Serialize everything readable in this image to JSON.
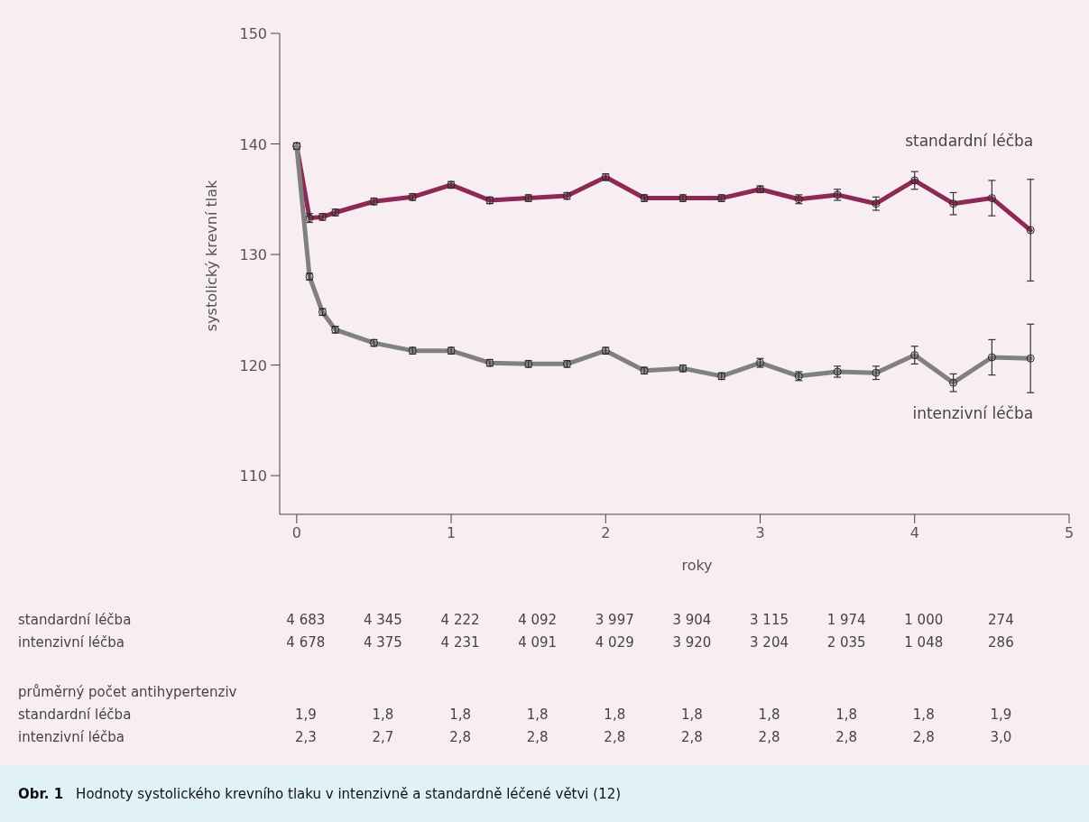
{
  "chart_data": {
    "type": "line",
    "title": "Obr. 1",
    "subtitle": "Hodnoty systolického krevního tlaku v intenzivně a standardně léčené větvi (12)",
    "xlabel": "roky",
    "ylabel": "systolický krevní tlak",
    "x": [
      0,
      0.083,
      0.167,
      0.25,
      0.5,
      0.75,
      1,
      1.25,
      1.5,
      1.75,
      2,
      2.25,
      2.5,
      2.75,
      3,
      3.25,
      3.5,
      3.75,
      4,
      4.25,
      4.5,
      4.75
    ],
    "series": [
      {
        "name": "standardní léčba",
        "color": "#8c2a55",
        "values": [
          139.8,
          133.3,
          133.4,
          133.8,
          134.8,
          135.2,
          136.3,
          134.9,
          135.1,
          135.3,
          137.0,
          135.1,
          135.1,
          135.1,
          135.9,
          135.0,
          135.4,
          134.6,
          136.7,
          134.6,
          135.1,
          132.2
        ],
        "errors": [
          0.3,
          0.4,
          0.3,
          0.3,
          0.3,
          0.3,
          0.3,
          0.3,
          0.3,
          0.3,
          0.3,
          0.3,
          0.3,
          0.3,
          0.3,
          0.4,
          0.5,
          0.6,
          0.8,
          1.0,
          1.6,
          4.6
        ]
      },
      {
        "name": "intenzivní léčba",
        "color": "#808080",
        "values": [
          139.8,
          128.0,
          124.8,
          123.2,
          122.0,
          121.3,
          121.3,
          120.2,
          120.1,
          120.1,
          121.3,
          119.5,
          119.7,
          119.0,
          120.2,
          119.0,
          119.4,
          119.3,
          120.9,
          118.4,
          120.7,
          120.6
        ],
        "errors": [
          null,
          0.3,
          0.3,
          0.3,
          0.3,
          0.3,
          0.3,
          0.3,
          0.3,
          0.3,
          0.3,
          0.3,
          0.3,
          0.3,
          0.4,
          0.4,
          0.5,
          0.6,
          0.8,
          0.8,
          1.6,
          3.1
        ]
      }
    ],
    "xlim": [
      -0.11,
      5
    ],
    "ylim": [
      106.5,
      150
    ],
    "xticks": [
      0,
      1,
      2,
      3,
      4,
      5
    ],
    "yticks": [
      110,
      120,
      130,
      140,
      150
    ],
    "marker": "circle",
    "line_style": "solid",
    "grid": false,
    "annotations": [
      "standardní léčba\t4 683\t4 345\t4 222\t4 092\t3 997\t3 904\t3 115\t1 974\t1 000\t274",
      "intenzivní léčba\t4 678\t4 375\t4 231\t4 091\t4 029\t3 920\t3 204\t2 035\t1 048\t286",
      "průměrný počet antihypertenziv",
      "standardní léčba\t1,9\t1,8\t1,8\t1,8\t1,8\t1,8\t1,8\t1,8\t1,8\t1,9",
      "intenzivní léčba\t2,3\t2,7\t2,8\t2,8\t2,8\t2,8\t2,8\t2,8\t2,8\t3,0"
    ]
  }
}
